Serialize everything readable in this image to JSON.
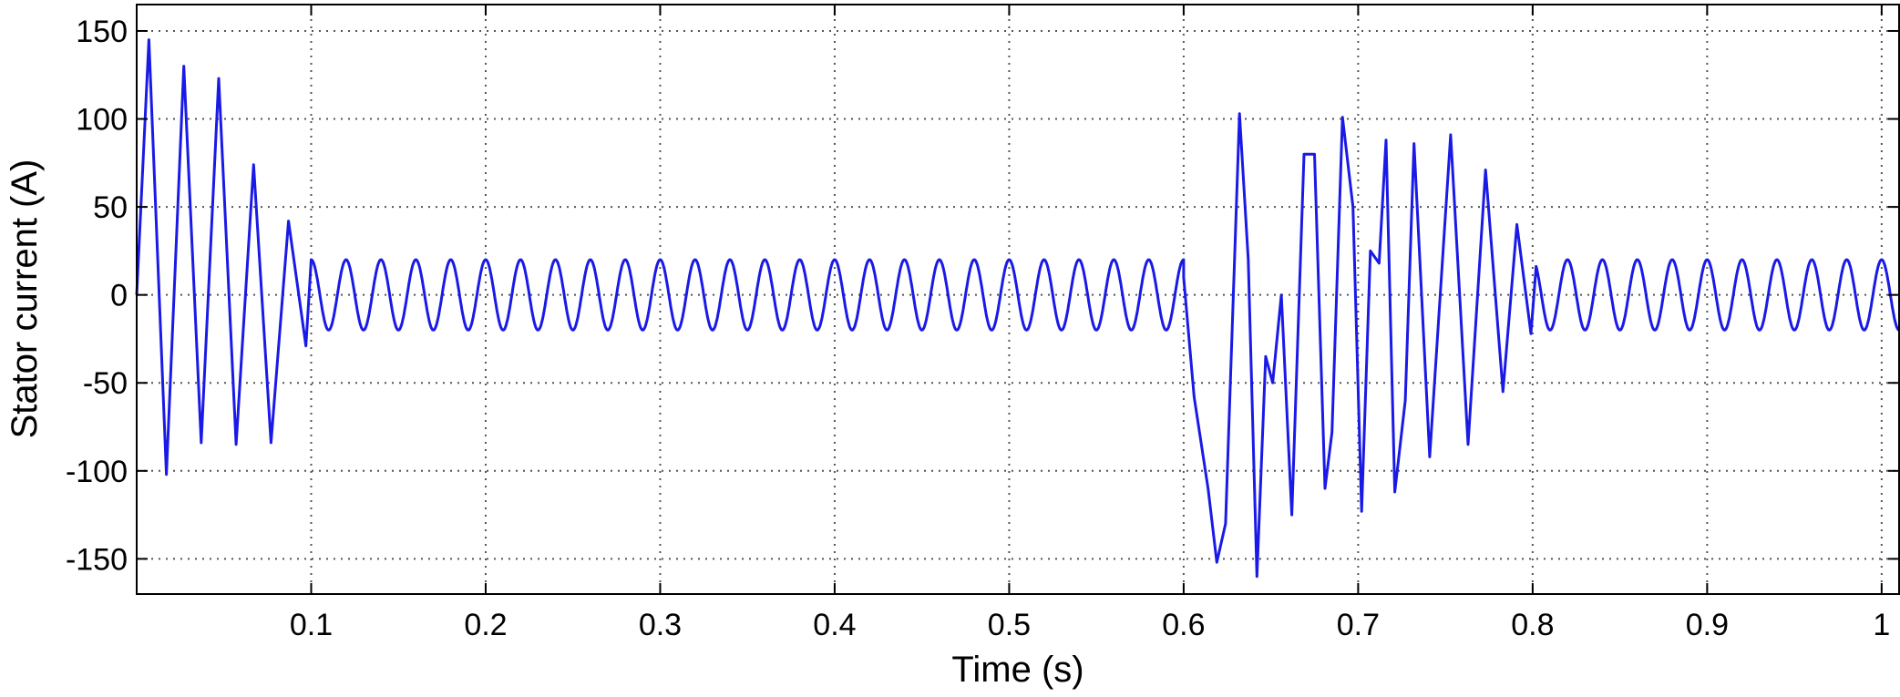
{
  "chart_data": {
    "type": "line",
    "title": "",
    "xlabel": "Time (s)",
    "ylabel": "Stator current (A)",
    "xlim": [
      0,
      1.01
    ],
    "ylim": [
      -170,
      165
    ],
    "xticks": [
      0.1,
      0.2,
      0.3,
      0.4,
      0.5,
      0.6,
      0.7,
      0.8,
      0.9,
      1
    ],
    "xtick_labels": [
      "0.1",
      "0.2",
      "0.3",
      "0.4",
      "0.5",
      "0.6",
      "0.7",
      "0.8",
      "0.9",
      "1"
    ],
    "yticks": [
      150,
      100,
      50,
      0,
      -50,
      -100,
      -150
    ],
    "ytick_labels": [
      "150",
      "100",
      "50",
      "0",
      "-50",
      "-100",
      "-150"
    ],
    "grid": true,
    "grid_style": "dotted",
    "line_color": "#1a1ae6",
    "series": [
      {
        "frequency_hz": 50,
        "steady_state_amplitude": 20,
        "segments": [
          {
            "t_start": 0.0,
            "t_end": 0.1,
            "behavior": "startup transient, decaying oscillation"
          },
          {
            "t_start": 0.1,
            "t_end": 0.6,
            "behavior": "steady sinusoid, amplitude about 20 A"
          },
          {
            "t_start": 0.6,
            "t_end": 0.79,
            "behavior": "disturbance transient, irregular large oscillation"
          },
          {
            "t_start": 0.79,
            "t_end": 1.01,
            "behavior": "steady sinusoid, amplitude about 20 A"
          }
        ],
        "peaks": [
          {
            "t": 0.007,
            "value": 145
          },
          {
            "t": 0.017,
            "value": -102
          },
          {
            "t": 0.027,
            "value": 130
          },
          {
            "t": 0.037,
            "value": -84
          },
          {
            "t": 0.047,
            "value": 123
          },
          {
            "t": 0.057,
            "value": -85
          },
          {
            "t": 0.067,
            "value": 74
          },
          {
            "t": 0.077,
            "value": -84
          },
          {
            "t": 0.087,
            "value": 42
          },
          {
            "t": 0.097,
            "value": -29
          },
          {
            "t": 0.6,
            "value": 10
          },
          {
            "t": 0.606,
            "value": -58
          },
          {
            "t": 0.614,
            "value": -110
          },
          {
            "t": 0.619,
            "value": -152
          },
          {
            "t": 0.624,
            "value": -130
          },
          {
            "t": 0.632,
            "value": 103
          },
          {
            "t": 0.637,
            "value": 20
          },
          {
            "t": 0.642,
            "value": -160
          },
          {
            "t": 0.647,
            "value": -35
          },
          {
            "t": 0.651,
            "value": -50
          },
          {
            "t": 0.656,
            "value": 0
          },
          {
            "t": 0.662,
            "value": -125
          },
          {
            "t": 0.669,
            "value": 80
          },
          {
            "t": 0.675,
            "value": 80
          },
          {
            "t": 0.681,
            "value": -110
          },
          {
            "t": 0.685,
            "value": -78
          },
          {
            "t": 0.691,
            "value": 101
          },
          {
            "t": 0.697,
            "value": 50
          },
          {
            "t": 0.702,
            "value": -123
          },
          {
            "t": 0.707,
            "value": 25
          },
          {
            "t": 0.712,
            "value": 18
          },
          {
            "t": 0.716,
            "value": 88
          },
          {
            "t": 0.721,
            "value": -112
          },
          {
            "t": 0.727,
            "value": -60
          },
          {
            "t": 0.732,
            "value": 86
          },
          {
            "t": 0.741,
            "value": -92
          },
          {
            "t": 0.753,
            "value": 91
          },
          {
            "t": 0.763,
            "value": -85
          },
          {
            "t": 0.773,
            "value": 71
          },
          {
            "t": 0.783,
            "value": -55
          },
          {
            "t": 0.791,
            "value": 40
          },
          {
            "t": 0.799,
            "value": -22
          }
        ]
      }
    ]
  }
}
